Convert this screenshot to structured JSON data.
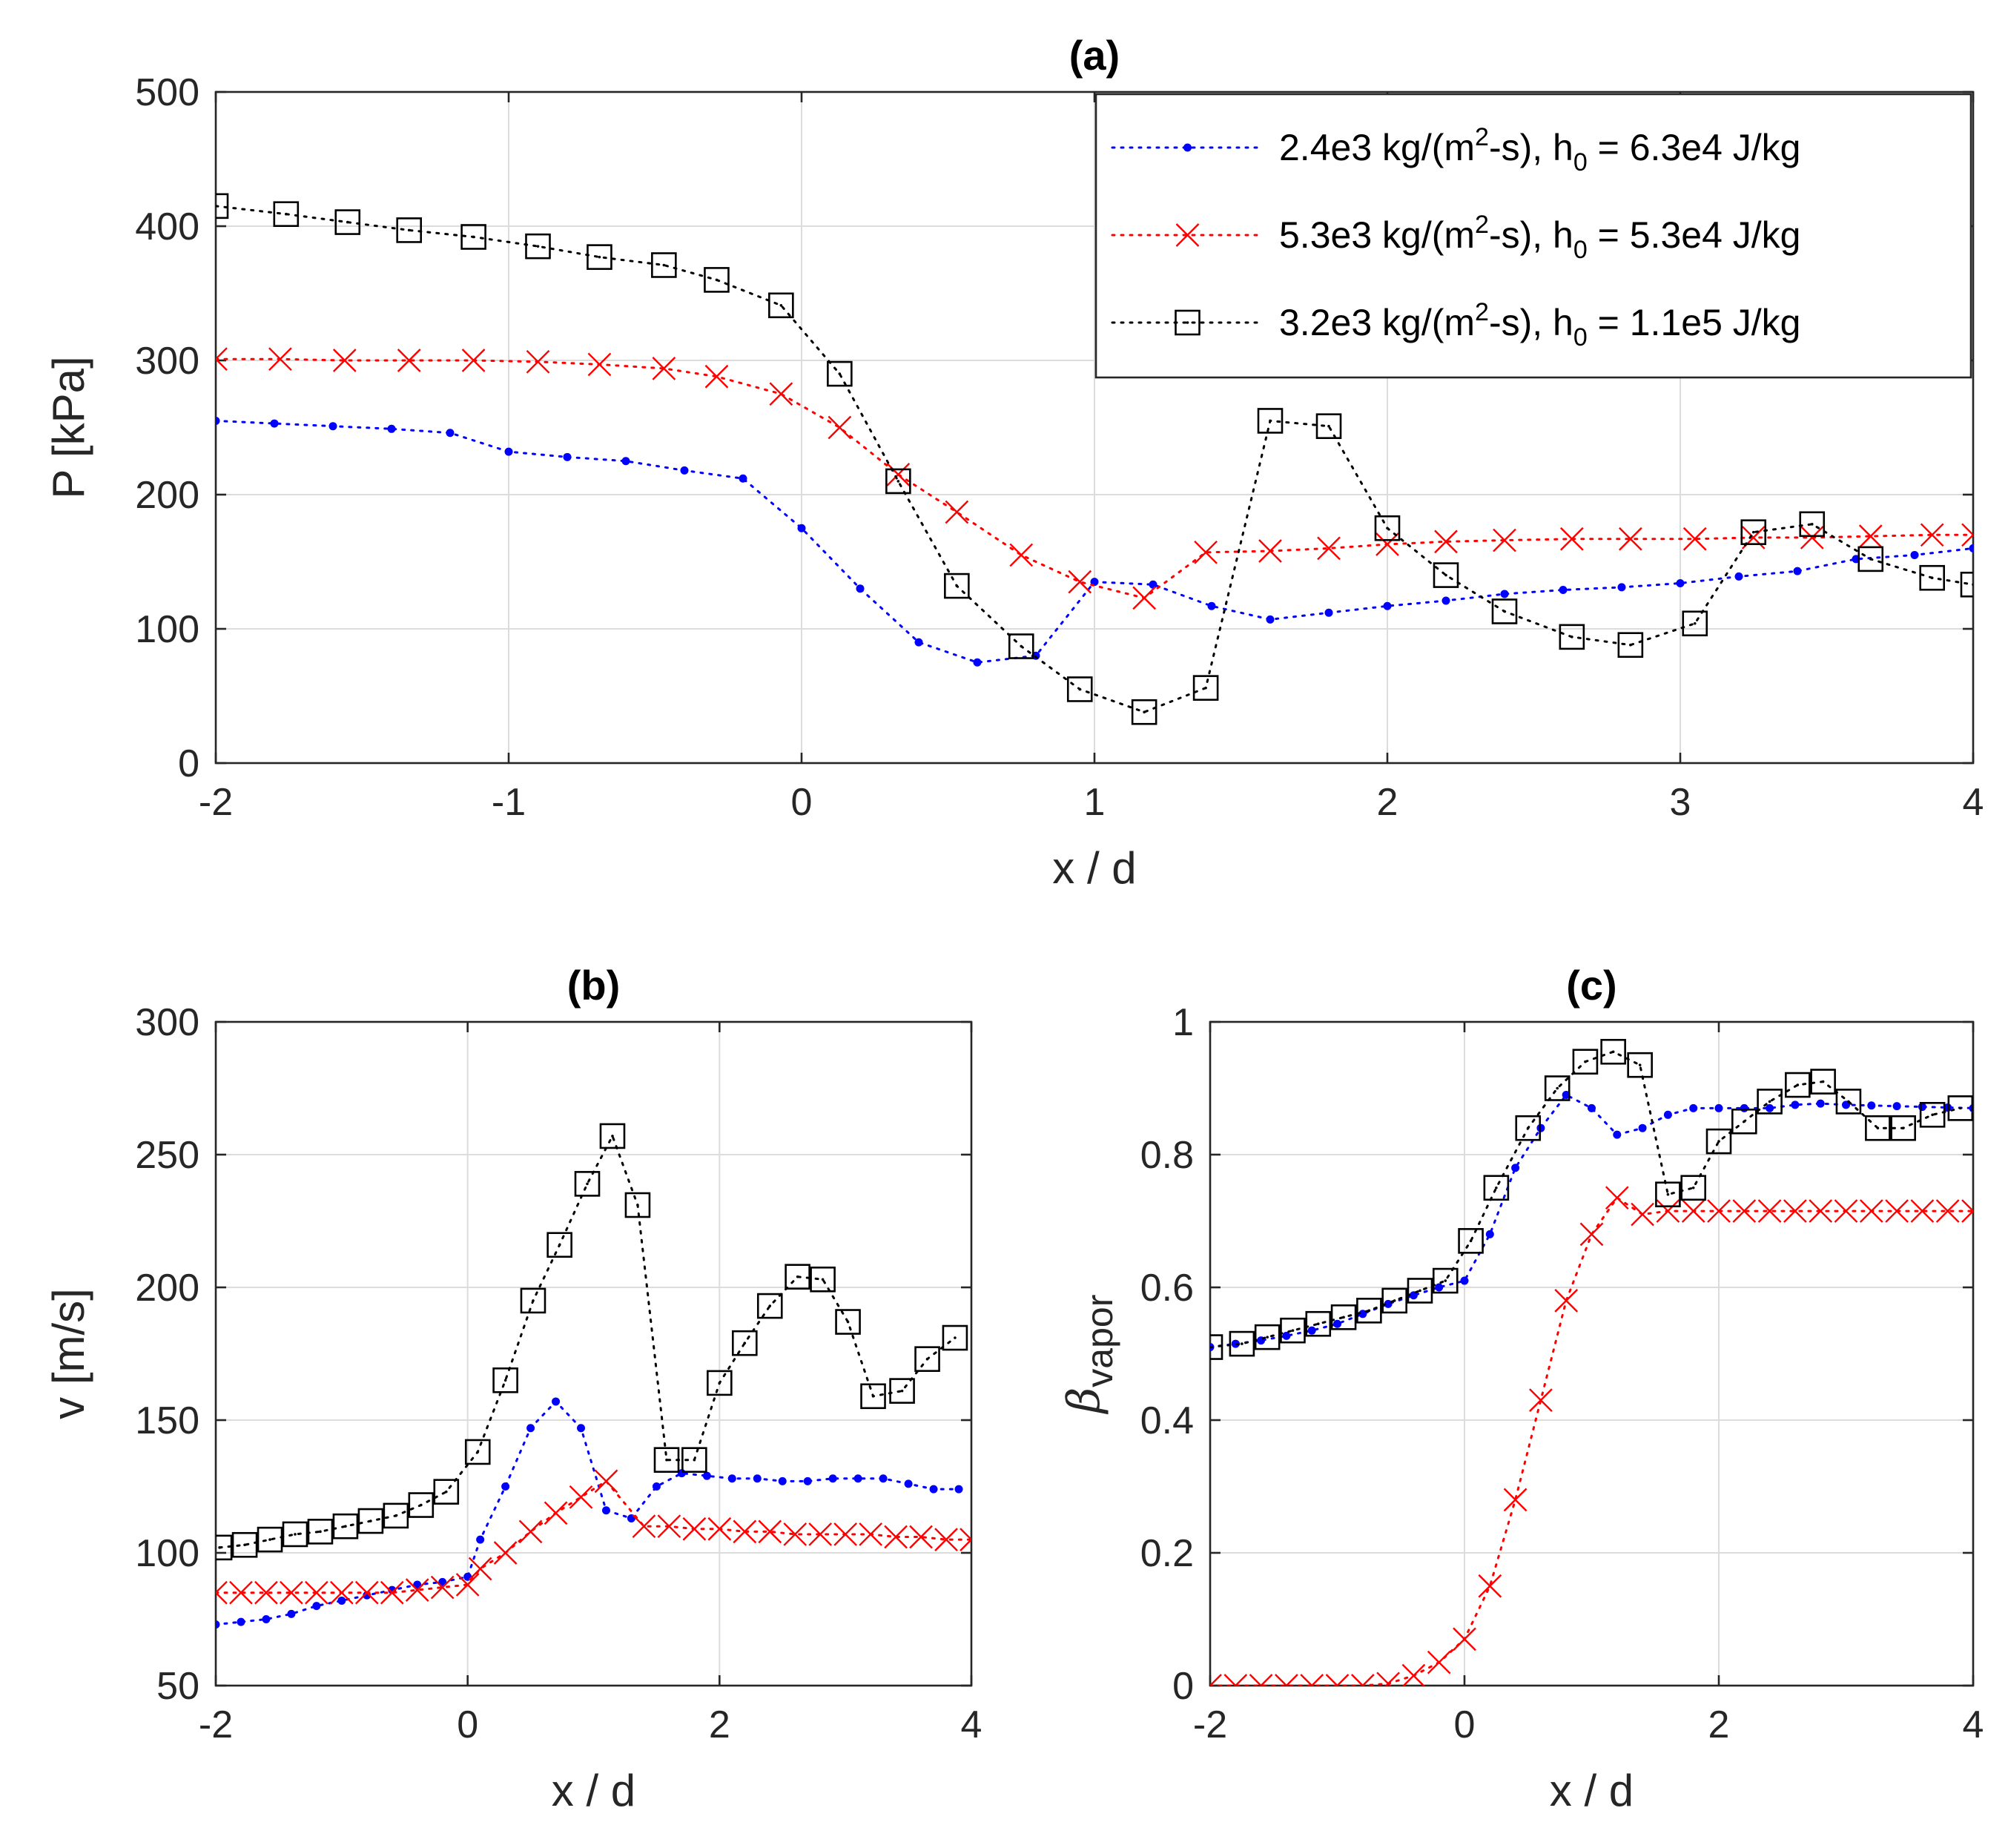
{
  "chart_data": [
    {
      "id": "a",
      "type": "line",
      "title": "(a)",
      "xlabel": "x / d",
      "ylabel": "P [kPa]",
      "xlim": [
        -2,
        4
      ],
      "ylim": [
        0,
        500
      ],
      "xticks": [
        -2,
        -1,
        0,
        1,
        2,
        3,
        4
      ],
      "yticks": [
        0,
        100,
        200,
        300,
        400,
        500
      ],
      "grid": true,
      "legend_position": "top-right",
      "legend": [
        {
          "main": "2.4e3 kg/(m",
          "sup": "2",
          "mid": "-s), h",
          "sub": "0",
          "tail": " = 6.3e4 J/kg"
        },
        {
          "main": "5.3e3 kg/(m",
          "sup": "2",
          "mid": "-s), h",
          "sub": "0",
          "tail": " = 5.3e4 J/kg"
        },
        {
          "main": "3.2e3 kg/(m",
          "sup": "2",
          "mid": "-s), h",
          "sub": "0",
          "tail": " = 1.1e5 J/kg"
        }
      ],
      "series": [
        {
          "name": "2.4e3 kg/(m2-s), h0 = 6.3e4 J/kg",
          "color": "#0000ff",
          "marker": "dot",
          "x": [
            -2.0,
            -1.8,
            -1.6,
            -1.4,
            -1.2,
            -1.0,
            -0.8,
            -0.6,
            -0.4,
            -0.2,
            0.0,
            0.2,
            0.4,
            0.6,
            0.8,
            1.0,
            1.2,
            1.4,
            1.6,
            1.8,
            2.0,
            2.2,
            2.4,
            2.6,
            2.8,
            3.0,
            3.2,
            3.4,
            3.6,
            3.8,
            4.0
          ],
          "y": [
            255,
            253,
            251,
            249,
            246,
            232,
            228,
            225,
            218,
            212,
            175,
            130,
            90,
            75,
            80,
            135,
            133,
            117,
            107,
            112,
            117,
            121,
            126,
            129,
            131,
            134,
            139,
            143,
            152,
            155,
            160
          ]
        },
        {
          "name": "5.3e3 kg/(m2-s), h0 = 5.3e4 J/kg",
          "color": "#ff0000",
          "marker": "x",
          "x": [
            -2.0,
            -1.78,
            -1.56,
            -1.34,
            -1.12,
            -0.9,
            -0.69,
            -0.47,
            -0.29,
            -0.07,
            0.13,
            0.33,
            0.53,
            0.75,
            0.95,
            1.17,
            1.38,
            1.6,
            1.8,
            2.0,
            2.2,
            2.4,
            2.63,
            2.83,
            3.05,
            3.25,
            3.45,
            3.65,
            3.86,
            4.0
          ],
          "y": [
            301,
            301,
            300,
            300,
            300,
            299,
            297,
            294,
            288,
            275,
            250,
            215,
            187,
            155,
            135,
            123,
            157,
            158,
            160,
            163,
            165,
            166,
            167,
            167,
            167,
            168,
            168,
            169,
            170,
            170
          ]
        },
        {
          "name": "3.2e3 kg/(m2-s), h0 = 1.1e5 J/kg",
          "color": "#000000",
          "marker": "square",
          "x": [
            -2.0,
            -1.76,
            -1.55,
            -1.34,
            -1.12,
            -0.9,
            -0.69,
            -0.47,
            -0.29,
            -0.07,
            0.13,
            0.33,
            0.53,
            0.75,
            0.95,
            1.17,
            1.38,
            1.6,
            1.8,
            2.0,
            2.2,
            2.4,
            2.63,
            2.83,
            3.05,
            3.25,
            3.45,
            3.65,
            3.86,
            4.0
          ],
          "y": [
            415,
            409,
            403,
            397,
            392,
            385,
            377,
            371,
            360,
            341,
            290,
            210,
            132,
            87,
            55,
            38,
            56,
            255,
            251,
            175,
            140,
            113,
            94,
            88,
            104,
            172,
            178,
            152,
            138,
            133
          ]
        }
      ]
    },
    {
      "id": "b",
      "type": "line",
      "title": "(b)",
      "xlabel": "x / d",
      "ylabel": "v [m/s]",
      "xlim": [
        -2,
        4
      ],
      "ylim": [
        50,
        300
      ],
      "xticks": [
        -2,
        0,
        2,
        4
      ],
      "yticks": [
        50,
        100,
        150,
        200,
        250,
        300
      ],
      "grid": true,
      "series": [
        {
          "name": "2.4e3 kg/(m2-s), h0 = 6.3e4 J/kg",
          "color": "#0000ff",
          "marker": "dot",
          "x": [
            -2.0,
            -1.8,
            -1.6,
            -1.4,
            -1.2,
            -1.0,
            -0.8,
            -0.6,
            -0.4,
            -0.2,
            0.0,
            0.1,
            0.3,
            0.5,
            0.7,
            0.9,
            1.1,
            1.3,
            1.5,
            1.7,
            1.9,
            2.1,
            2.3,
            2.5,
            2.7,
            2.9,
            3.1,
            3.3,
            3.5,
            3.7,
            3.9
          ],
          "y": [
            73,
            74,
            75,
            77,
            80,
            82,
            84,
            86,
            88,
            89,
            91,
            105,
            125,
            147,
            157,
            147,
            116,
            113,
            125,
            130,
            129,
            128,
            128,
            127,
            127,
            128,
            128,
            128,
            126,
            124,
            124
          ]
        },
        {
          "name": "5.3e3 kg/(m2-s), h0 = 5.3e4 J/kg",
          "color": "#ff0000",
          "marker": "x",
          "x": [
            -2.0,
            -1.8,
            -1.6,
            -1.4,
            -1.2,
            -1.0,
            -0.8,
            -0.6,
            -0.4,
            -0.2,
            0.0,
            0.1,
            0.3,
            0.5,
            0.7,
            0.9,
            1.1,
            1.4,
            1.6,
            1.8,
            2.0,
            2.2,
            2.4,
            2.6,
            2.8,
            3.0,
            3.2,
            3.4,
            3.6,
            3.8,
            4.0
          ],
          "y": [
            85,
            85,
            85,
            85,
            85,
            85,
            85,
            85,
            86,
            87,
            88,
            94,
            100,
            108,
            115,
            121,
            127,
            110,
            110,
            109,
            109,
            108,
            108,
            107,
            107,
            107,
            107,
            106,
            106,
            105,
            105
          ]
        },
        {
          "name": "3.2e3 kg/(m2-s), h0 = 1.1e5 J/kg",
          "color": "#000000",
          "marker": "square",
          "x": [
            -1.97,
            -1.77,
            -1.57,
            -1.37,
            -1.17,
            -0.97,
            -0.77,
            -0.57,
            -0.37,
            -0.17,
            0.08,
            0.3,
            0.52,
            0.73,
            0.95,
            1.15,
            1.35,
            1.58,
            1.8,
            2.0,
            2.2,
            2.4,
            2.62,
            2.82,
            3.02,
            3.22,
            3.45,
            3.65,
            3.87
          ],
          "y": [
            102,
            103,
            105,
            107,
            108,
            110,
            112,
            114,
            118,
            123,
            138,
            165,
            195,
            216,
            239,
            257,
            231,
            135,
            135,
            164,
            179,
            193,
            204,
            203,
            187,
            159,
            161,
            173,
            181
          ]
        }
      ]
    },
    {
      "id": "c",
      "type": "line",
      "title": "(c)",
      "xlabel": "x / d",
      "ylabel": "β",
      "ylabel_sub": "vapor",
      "xlim": [
        -2,
        4
      ],
      "ylim": [
        0,
        1
      ],
      "xticks": [
        -2,
        0,
        2,
        4
      ],
      "yticks": [
        0,
        0.2,
        0.4,
        0.6,
        0.8,
        1
      ],
      "grid": true,
      "series": [
        {
          "name": "2.4e3 kg/(m2-s), h0 = 6.3e4 J/kg",
          "color": "#0000ff",
          "marker": "dot",
          "x": [
            -2.0,
            -1.8,
            -1.6,
            -1.4,
            -1.2,
            -1.0,
            -0.8,
            -0.6,
            -0.4,
            -0.2,
            0.0,
            0.2,
            0.4,
            0.6,
            0.8,
            1.0,
            1.2,
            1.4,
            1.6,
            1.8,
            2.0,
            2.2,
            2.4,
            2.6,
            2.8,
            3.0,
            3.2,
            3.4,
            3.6,
            3.8,
            4.0
          ],
          "y": [
            0.51,
            0.515,
            0.52,
            0.527,
            0.535,
            0.545,
            0.56,
            0.575,
            0.588,
            0.6,
            0.61,
            0.68,
            0.78,
            0.84,
            0.89,
            0.87,
            0.83,
            0.84,
            0.86,
            0.87,
            0.87,
            0.87,
            0.87,
            0.875,
            0.877,
            0.875,
            0.874,
            0.873,
            0.872,
            0.871,
            0.87
          ]
        },
        {
          "name": "5.3e3 kg/(m2-s), h0 = 5.3e4 J/kg",
          "color": "#ff0000",
          "marker": "x",
          "x": [
            -2.0,
            -1.8,
            -1.6,
            -1.4,
            -1.2,
            -1.0,
            -0.8,
            -0.6,
            -0.4,
            -0.2,
            0.0,
            0.2,
            0.4,
            0.6,
            0.8,
            1.0,
            1.2,
            1.4,
            1.6,
            1.8,
            2.0,
            2.2,
            2.4,
            2.6,
            2.8,
            3.0,
            3.2,
            3.4,
            3.6,
            3.8,
            4.0
          ],
          "y": [
            0,
            0,
            0,
            0,
            0,
            0,
            0,
            0.003,
            0.015,
            0.035,
            0.07,
            0.15,
            0.28,
            0.43,
            0.58,
            0.68,
            0.735,
            0.71,
            0.715,
            0.715,
            0.715,
            0.715,
            0.715,
            0.715,
            0.715,
            0.715,
            0.715,
            0.715,
            0.715,
            0.715,
            0.715
          ]
        },
        {
          "name": "3.2e3 kg/(m2-s), h0 = 1.1e5 J/kg",
          "color": "#000000",
          "marker": "square",
          "x": [
            -2.0,
            -1.75,
            -1.55,
            -1.35,
            -1.15,
            -0.95,
            -0.75,
            -0.55,
            -0.35,
            -0.15,
            0.05,
            0.25,
            0.5,
            0.73,
            0.95,
            1.17,
            1.38,
            1.6,
            1.8,
            2.0,
            2.2,
            2.4,
            2.62,
            2.82,
            3.02,
            3.25,
            3.45,
            3.68,
            3.9
          ],
          "y": [
            0.51,
            0.515,
            0.525,
            0.535,
            0.545,
            0.555,
            0.565,
            0.58,
            0.595,
            0.61,
            0.67,
            0.75,
            0.84,
            0.9,
            0.94,
            0.955,
            0.935,
            0.74,
            0.75,
            0.82,
            0.85,
            0.88,
            0.905,
            0.91,
            0.88,
            0.84,
            0.84,
            0.86,
            0.87
          ]
        }
      ]
    }
  ]
}
